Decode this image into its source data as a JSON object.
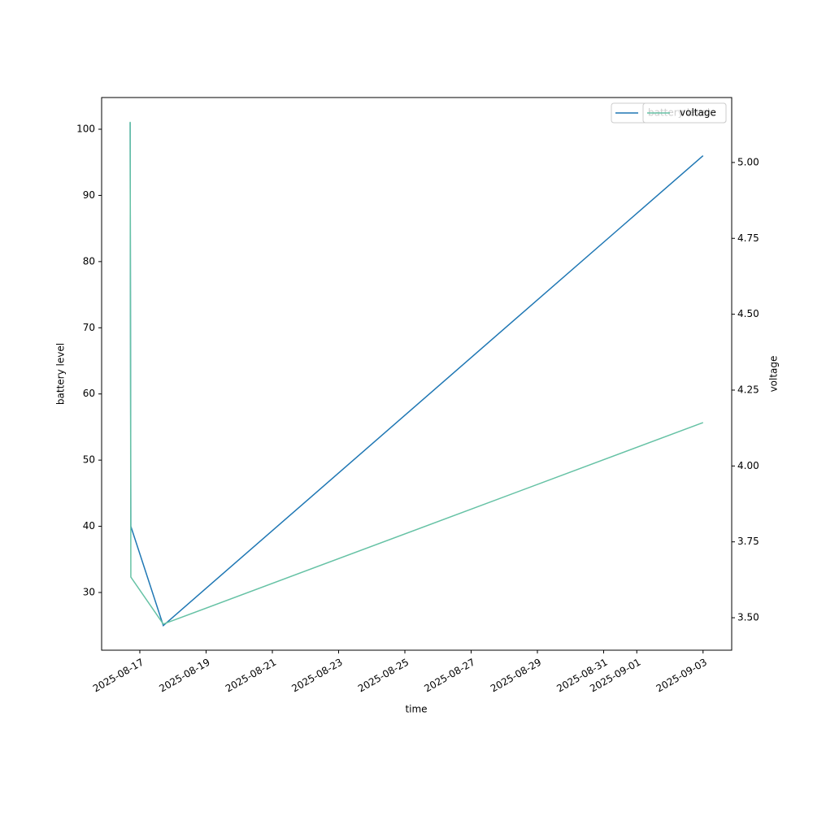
{
  "chart_data": {
    "type": "line",
    "xlabel": "time",
    "ylabel": "battery level",
    "y2label": "voltage",
    "x": [
      "2025-08-16T17:00",
      "2025-08-16T17:30",
      "2025-08-17T17:00",
      "2025-09-03T00:00"
    ],
    "series": [
      {
        "name": "battery level",
        "color": "#1f77b4",
        "values": [
          101,
          40,
          25,
          96
        ]
      },
      {
        "name": "voltage",
        "color": "#66c2a5",
        "axis": "y2",
        "values": [
          5.134,
          3.634,
          3.479,
          4.143
        ]
      }
    ],
    "xlim": [
      "2025-08-15T20:20",
      "2025-09-03T20:45"
    ],
    "xticks": [
      "2025-08-17",
      "2025-08-19",
      "2025-08-21",
      "2025-08-23",
      "2025-08-25",
      "2025-08-27",
      "2025-08-29",
      "2025-08-31",
      "2025-09-01",
      "2025-09-03"
    ],
    "ylim": [
      21.28,
      104.79
    ],
    "yticks": [
      30,
      40,
      50,
      60,
      70,
      80,
      90,
      100
    ],
    "y2lim": [
      3.393,
      5.214
    ],
    "y2ticks": [
      {
        "value": 3.5,
        "label": "3.50"
      },
      {
        "value": 3.75,
        "label": "3.75"
      },
      {
        "value": 4,
        "label": "4.00"
      },
      {
        "value": 4.25,
        "label": "4.25"
      },
      {
        "value": 4.5,
        "label": "4.50"
      },
      {
        "value": 4.75,
        "label": "4.75"
      },
      {
        "value": 5,
        "label": "5.00"
      }
    ],
    "legend": "upper right"
  }
}
